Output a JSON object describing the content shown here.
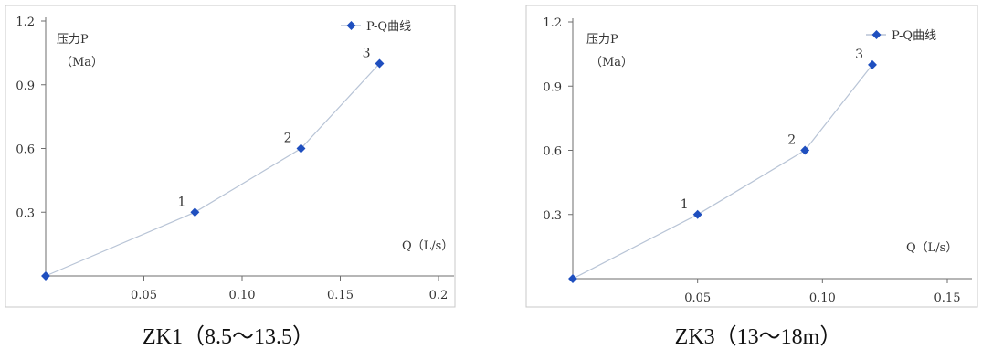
{
  "chart_data": [
    {
      "type": "line",
      "title": "",
      "caption": "ZK1（8.5～13.5）",
      "ylabel_line1": "压力P",
      "ylabel_line2": "（Ma）",
      "xlabel": "Q（L/s）",
      "legend": {
        "label": "P-Q曲线",
        "position": "top-right"
      },
      "xlim": [
        0,
        0.2
      ],
      "ylim": [
        0,
        1.2
      ],
      "xticks": [
        {
          "value": 0.05,
          "label": "0.05"
        },
        {
          "value": 0.1,
          "label": "0.10"
        },
        {
          "value": 0.15,
          "label": "0.15"
        },
        {
          "value": 0.2,
          "label": "0.2"
        }
      ],
      "yticks": [
        {
          "value": 0.3,
          "label": "0.3"
        },
        {
          "value": 0.6,
          "label": "0.6"
        },
        {
          "value": 0.9,
          "label": "0.9"
        },
        {
          "value": 1.2,
          "label": "1.2"
        }
      ],
      "series": [
        {
          "name": "P-Q曲线",
          "points": [
            {
              "x": 0.0,
              "y": 0.0,
              "label": ""
            },
            {
              "x": 0.076,
              "y": 0.3,
              "label": "1"
            },
            {
              "x": 0.13,
              "y": 0.6,
              "label": "2"
            },
            {
              "x": 0.17,
              "y": 1.0,
              "label": "3"
            }
          ]
        }
      ],
      "colors": {
        "line": "#b8c4d6",
        "marker": "#1f4fbf"
      }
    },
    {
      "type": "line",
      "title": "",
      "caption": "ZK3（13～18m）",
      "ylabel_line1": "压力P",
      "ylabel_line2": "（Ma）",
      "xlabel": "Q（L/s）",
      "legend": {
        "label": "P-Q曲线",
        "position": "top-right"
      },
      "xlim": [
        0,
        0.15
      ],
      "ylim": [
        0,
        1.2
      ],
      "xticks": [
        {
          "value": 0.05,
          "label": "0.05"
        },
        {
          "value": 0.1,
          "label": "0.10"
        },
        {
          "value": 0.15,
          "label": "0.15"
        }
      ],
      "yticks": [
        {
          "value": 0.3,
          "label": "0.3"
        },
        {
          "value": 0.6,
          "label": "0.6"
        },
        {
          "value": 0.9,
          "label": "0.9"
        },
        {
          "value": 1.2,
          "label": "1.2"
        }
      ],
      "series": [
        {
          "name": "P-Q曲线",
          "points": [
            {
              "x": 0.0,
              "y": 0.0,
              "label": ""
            },
            {
              "x": 0.05,
              "y": 0.3,
              "label": "1"
            },
            {
              "x": 0.093,
              "y": 0.6,
              "label": "2"
            },
            {
              "x": 0.12,
              "y": 1.0,
              "label": "3"
            }
          ]
        }
      ],
      "colors": {
        "line": "#b8c4d6",
        "marker": "#1f4fbf"
      }
    }
  ]
}
